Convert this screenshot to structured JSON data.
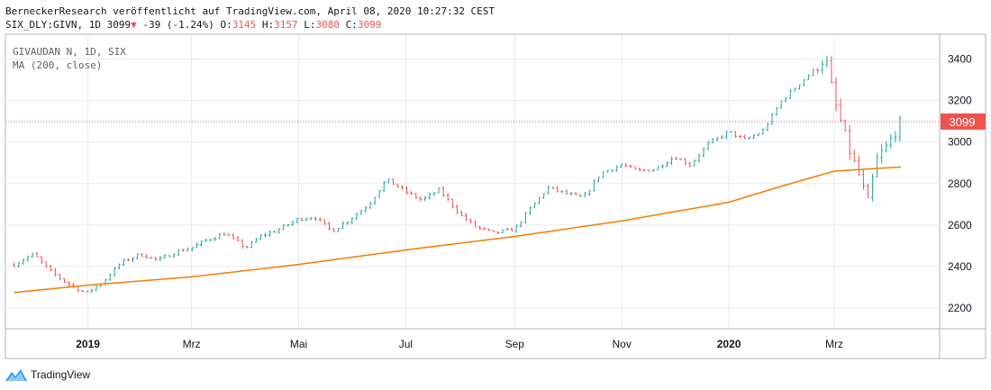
{
  "header": {
    "line1": "BerneckerResearch veröffentlicht auf TradingView.com, April 08, 2020 10:27:32 CEST",
    "symbol": "SIX_DLY:GIVN, 1D",
    "price": "3099",
    "change": "-39 (-1.24%)",
    "o_label": "O:",
    "o_value": "3145",
    "h_label": "H:",
    "h_value": "3157",
    "l_label": "L:",
    "l_value": "3080",
    "c_label": "C:",
    "c_value": "3099",
    "arrow_icon": "down-triangle-icon"
  },
  "legend": {
    "instrument": "GIVAUDAN N, 1D, SIX",
    "indicator": "MA (200, close)"
  },
  "brand": {
    "name": "TradingView",
    "icon": "tradingview-logo-icon"
  },
  "colors": {
    "up": "#26a69a",
    "down": "#ef5350",
    "ma": "#f57c00",
    "last_price": "#ef5350",
    "grid": "#e6e9f0"
  },
  "chart_data": {
    "type": "line",
    "title": "",
    "xlabel": "",
    "ylabel": "",
    "ylim": [
      2100,
      3520
    ],
    "y_ticks": [
      "2200",
      "2400",
      "2600",
      "2800",
      "3000",
      "3200",
      "3400"
    ],
    "x_ticks": [
      {
        "label": "2019",
        "bold": true,
        "date": "2019-01-01"
      },
      {
        "label": "Mrz",
        "bold": false,
        "date": "2019-03-01"
      },
      {
        "label": "Mai",
        "bold": false,
        "date": "2019-05-01"
      },
      {
        "label": "Jul",
        "bold": false,
        "date": "2019-07-01"
      },
      {
        "label": "Sep",
        "bold": false,
        "date": "2019-09-01"
      },
      {
        "label": "Nov",
        "bold": false,
        "date": "2019-11-01"
      },
      {
        "label": "2020",
        "bold": true,
        "date": "2020-01-01"
      },
      {
        "label": "Mrz",
        "bold": false,
        "date": "2020-03-01"
      }
    ],
    "last_price": 3099,
    "series": [
      {
        "name": "GIVAUDAN N",
        "style": "ohlc-bars",
        "x": [
          "2018-11-20",
          "2018-12-01",
          "2018-12-10",
          "2018-12-20",
          "2018-12-31",
          "2019-01-10",
          "2019-01-20",
          "2019-01-31",
          "2019-02-10",
          "2019-02-20",
          "2019-03-01",
          "2019-03-10",
          "2019-03-20",
          "2019-04-01",
          "2019-04-10",
          "2019-04-20",
          "2019-05-01",
          "2019-05-10",
          "2019-05-20",
          "2019-06-01",
          "2019-06-10",
          "2019-06-20",
          "2019-07-01",
          "2019-07-10",
          "2019-07-20",
          "2019-08-01",
          "2019-08-10",
          "2019-08-20",
          "2019-09-01",
          "2019-09-10",
          "2019-09-20",
          "2019-10-01",
          "2019-10-10",
          "2019-10-20",
          "2019-11-01",
          "2019-11-10",
          "2019-11-20",
          "2019-12-01",
          "2019-12-10",
          "2019-12-20",
          "2020-01-01",
          "2020-01-10",
          "2020-01-20",
          "2020-01-31",
          "2020-02-10",
          "2020-02-20",
          "2020-02-25",
          "2020-03-01",
          "2020-03-10",
          "2020-03-16",
          "2020-03-20",
          "2020-03-25",
          "2020-03-31",
          "2020-04-08"
        ],
        "values": [
          2410,
          2460,
          2380,
          2320,
          2270,
          2330,
          2420,
          2460,
          2430,
          2470,
          2490,
          2530,
          2560,
          2490,
          2550,
          2580,
          2630,
          2640,
          2570,
          2640,
          2700,
          2820,
          2760,
          2720,
          2770,
          2650,
          2590,
          2560,
          2580,
          2680,
          2780,
          2750,
          2730,
          2850,
          2890,
          2860,
          2870,
          2930,
          2890,
          2990,
          3050,
          3010,
          3050,
          3200,
          3280,
          3360,
          3410,
          3200,
          2950,
          2820,
          2700,
          2910,
          2980,
          3099
        ]
      },
      {
        "name": "MA (200, close)",
        "style": "line",
        "x": [
          "2018-11-20",
          "2019-01-01",
          "2019-03-01",
          "2019-05-01",
          "2019-07-01",
          "2019-09-01",
          "2019-11-01",
          "2020-01-01",
          "2020-02-01",
          "2020-03-01",
          "2020-04-08"
        ],
        "values": [
          2275,
          2310,
          2350,
          2410,
          2480,
          2545,
          2620,
          2710,
          2790,
          2860,
          2880
        ]
      }
    ]
  }
}
